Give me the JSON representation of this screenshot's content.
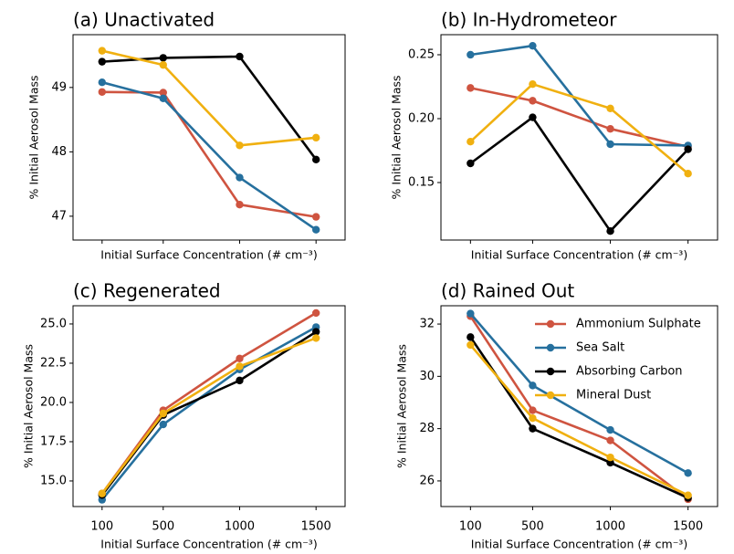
{
  "chart_data": [
    {
      "type": "line",
      "title": "(a) Unactivated",
      "xlabel": "Initial Surface Concentration (# cm⁻³)",
      "ylabel": "% Initial Aerosol Mass",
      "x": [
        100,
        500,
        1000,
        1500
      ],
      "xlim": [
        -90,
        1690
      ],
      "xticks": [
        100,
        500,
        1000,
        1500
      ],
      "show_xtick_labels": false,
      "ylim": [
        46.63,
        49.82
      ],
      "yticks": [
        47,
        48,
        49
      ],
      "series": [
        {
          "color": "#cf5440",
          "values": [
            48.93,
            48.92,
            47.18,
            46.99
          ]
        },
        {
          "color": "#26709e",
          "values": [
            49.08,
            48.83,
            47.6,
            46.79
          ]
        },
        {
          "color": "#000000",
          "values": [
            49.4,
            49.46,
            49.48,
            47.88
          ]
        },
        {
          "color": "#f0b010",
          "values": [
            49.57,
            49.35,
            48.1,
            48.22
          ]
        }
      ]
    },
    {
      "type": "line",
      "title": "(b) In-Hydrometeor",
      "xlabel": "Initial Surface Concentration (# cm⁻³)",
      "ylabel": "% Initial Aerosol Mass",
      "x": [
        100,
        500,
        1000,
        1500
      ],
      "xlim": [
        -90,
        1690
      ],
      "xticks": [
        100,
        500,
        1000,
        1500
      ],
      "show_xtick_labels": false,
      "ylim": [
        0.105,
        0.2657
      ],
      "yticks": [
        0.15,
        {
          "value": 0.2,
          "label": "0.20"
        },
        0.25
      ],
      "series": [
        {
          "color": "#cf5440",
          "values": [
            0.224,
            0.214,
            0.192,
            0.178
          ]
        },
        {
          "color": "#26709e",
          "values": [
            0.25,
            0.257,
            0.18,
            0.179
          ]
        },
        {
          "color": "#000000",
          "values": [
            0.165,
            0.201,
            0.112,
            0.176
          ]
        },
        {
          "color": "#f0b010",
          "values": [
            0.182,
            0.227,
            0.208,
            0.157
          ]
        }
      ]
    },
    {
      "type": "line",
      "title": "(c) Regenerated",
      "xlabel": "Initial Surface Concentration (# cm⁻³)",
      "ylabel": "% Initial Aerosol Mass",
      "x": [
        100,
        500,
        1000,
        1500
      ],
      "xlim": [
        -90,
        1690
      ],
      "xticks": [
        100,
        500,
        1000,
        1500
      ],
      "show_xtick_labels": true,
      "ylim": [
        13.37,
        26.16
      ],
      "yticks": [
        {
          "value": 15,
          "label": "15.0"
        },
        17.5,
        {
          "value": 20,
          "label": "20.0"
        },
        22.5,
        {
          "value": 25,
          "label": "25.0"
        }
      ],
      "series": [
        {
          "color": "#cf5440",
          "values": [
            14.2,
            19.5,
            22.8,
            25.7
          ]
        },
        {
          "color": "#26709e",
          "values": [
            13.8,
            18.6,
            22.1,
            24.8
          ]
        },
        {
          "color": "#000000",
          "values": [
            14.1,
            19.2,
            21.4,
            24.5
          ]
        },
        {
          "color": "#f0b010",
          "values": [
            14.2,
            19.3,
            22.3,
            24.1
          ]
        }
      ]
    },
    {
      "type": "line",
      "title": "(d) Rained Out",
      "xlabel": "Initial Surface Concentration (# cm⁻³)",
      "ylabel": "% Initial Aerosol Mass",
      "x": [
        100,
        500,
        1000,
        1500
      ],
      "xlim": [
        -90,
        1690
      ],
      "xticks": [
        100,
        500,
        1000,
        1500
      ],
      "show_xtick_labels": true,
      "ylim": [
        25.02,
        32.7
      ],
      "yticks": [
        26,
        28,
        30,
        32
      ],
      "legend": "upper right",
      "series": [
        {
          "name": "Ammonium Sulphate",
          "color": "#cf5440",
          "values": [
            32.3,
            28.7,
            27.55,
            25.3
          ]
        },
        {
          "name": "Sea Salt",
          "color": "#26709e",
          "values": [
            32.4,
            29.65,
            27.95,
            26.3
          ]
        },
        {
          "name": "Absorbing Carbon",
          "color": "#000000",
          "values": [
            31.5,
            28.0,
            26.7,
            25.35
          ]
        },
        {
          "name": "Mineral Dust",
          "color": "#f0b010",
          "values": [
            31.2,
            28.4,
            26.9,
            25.45
          ]
        }
      ]
    }
  ]
}
